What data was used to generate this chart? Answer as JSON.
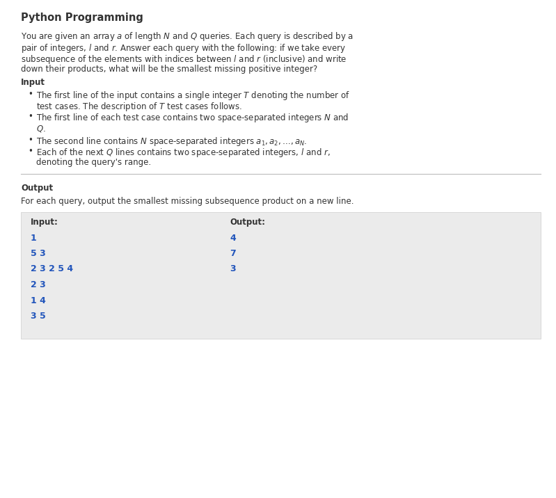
{
  "title": "Python Programming",
  "bg_color": "#ffffff",
  "text_color": "#333333",
  "blue_color": "#2255bb",
  "title_fontsize": 10.5,
  "body_fontsize": 8.5,
  "small_fontsize": 8.0,
  "paragraph_lines": [
    "You are given an array $a$ of length $N$ and $Q$ queries. Each query is described by a",
    "pair of integers, $l$ and $r$. Answer each query with the following: if we take every",
    "subsequence of the elements with indices between $l$ and $r$ (inclusive) and write",
    "down their products, what will be the smallest missing positive integer?"
  ],
  "input_header": "Input",
  "bullet_groups": [
    [
      "The first line of the input contains a single integer $T$ denoting the number of",
      "test cases. The description of $T$ test cases follows."
    ],
    [
      "The first line of each test case contains two space-separated integers $N$ and",
      "$Q$."
    ],
    [
      "The second line contains $N$ space-separated integers $a_1, a_2, \\ldots, a_N$."
    ],
    [
      "Each of the next $Q$ lines contains two space-separated integers, $l$ and $r$,",
      "denoting the query's range."
    ]
  ],
  "output_header": "Output",
  "output_body": "For each query, output the smallest missing subsequence product on a new line.",
  "table_bg": "#ebebeb",
  "table_input_header": "Input:",
  "table_output_header": "Output:",
  "table_input_lines": [
    "1",
    "5 3",
    "2 3 2 5 4",
    "2 3",
    "1 4",
    "3 5"
  ],
  "table_output_lines": [
    "4",
    "7",
    "3"
  ],
  "separator_color": "#bbbbbb"
}
